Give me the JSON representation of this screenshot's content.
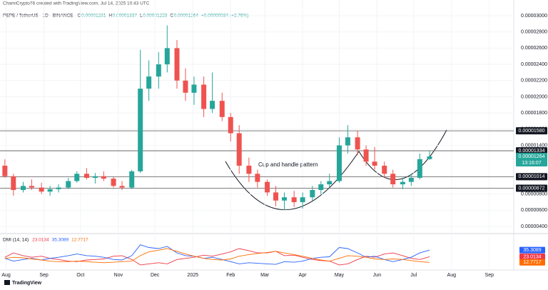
{
  "header": {
    "credit": "ChamiCrypto78 created with TradingView.com, Jul 14, 2025 10:43 UTC",
    "symbol": "PEPE / TetherUS · 1D · BINANCE",
    "ohlc": [
      {
        "label": "O",
        "value": 1.231e-05
      },
      {
        "label": "H",
        "value": 1.337e-05
      },
      {
        "label": "L",
        "value": 1.223e-05
      },
      {
        "label": "C",
        "value": 1.264e-05
      }
    ],
    "change": "+0.00000034 (+2.76%)"
  },
  "annotation": "Cup and handle pattern",
  "footer": "TradingView",
  "chart_data": [
    {
      "type": "candlestick",
      "up_color": "#26a69a",
      "down_color": "#ef5350",
      "x": [
        -1,
        6,
        14,
        21,
        29,
        36,
        43,
        51,
        58,
        66,
        73,
        80,
        88,
        95,
        103,
        110,
        117,
        125,
        132,
        140,
        147,
        154,
        162,
        169,
        177,
        184,
        191,
        199,
        206,
        214,
        221,
        228,
        236,
        243,
        251,
        258,
        265,
        273,
        280,
        288,
        295,
        302,
        310,
        317,
        325,
        332,
        339,
        347
      ],
      "open": [
        1.15e-05,
        1.02e-05,
        8.5e-06,
        9e-06,
        8.8e-06,
        8.3e-06,
        8.6e-06,
        8.8e-06,
        9.6e-06,
        1.05e-05,
        1e-05,
        1.02e-05,
        9.9e-06,
        9e-06,
        8.8e-06,
        1.08e-05,
        2.1e-05,
        2.25e-05,
        2.4e-05,
        2.6e-05,
        2.2e-05,
        2.05e-05,
        2.15e-05,
        1.85e-05,
        1.95e-05,
        1.75e-05,
        1.55e-05,
        1.15e-05,
        1.05e-05,
        9.5e-06,
        8.2e-06,
        7.2e-06,
        7.6e-06,
        7e-06,
        7.6e-06,
        8.5e-06,
        9.2e-06,
        9.6e-06,
        1.4e-05,
        1.5e-05,
        1.35e-05,
        1.2e-05,
        1.15e-05,
        1.05e-05,
        9.2e-06,
        9.5e-06,
        1e-05,
        1.231e-05
      ],
      "high": [
        1.23e-05,
        1.05e-05,
        9.5e-06,
        9.8e-06,
        9.4e-06,
        9e-06,
        9.2e-06,
        1e-05,
        1.08e-05,
        1.12e-05,
        1.06e-05,
        1.08e-05,
        1.01e-05,
        9.6e-06,
        1.1e-05,
        2.58e-05,
        2.45e-05,
        2.55e-05,
        2.88e-05,
        2.7e-05,
        2.35e-05,
        2.25e-05,
        2.25e-05,
        2.3e-05,
        2.05e-05,
        1.8e-05,
        1.65e-05,
        1.25e-05,
        1.1e-05,
        9.8e-06,
        9e-06,
        8.2e-06,
        8.4e-06,
        8.2e-06,
        9e-06,
        9.6e-06,
        1.05e-05,
        1.5e-05,
        1.65e-05,
        1.58e-05,
        1.4e-05,
        1.38e-05,
        1.2e-05,
        1.1e-05,
        1e-05,
        1.05e-05,
        1.3e-05,
        1.337e-05
      ],
      "low": [
        1e-05,
        7.8e-06,
        8.2e-06,
        8.5e-06,
        8e-06,
        7.8e-06,
        8.2e-06,
        8.6e-06,
        9.4e-06,
        9.8e-06,
        9.3e-06,
        9.6e-06,
        8.8e-06,
        8.5e-06,
        8.6e-06,
        1.06e-05,
        1.95e-05,
        2.1e-05,
        2.3e-05,
        2.1e-05,
        1.95e-05,
        1.9e-05,
        1.75e-05,
        1.8e-05,
        1.7e-05,
        1.45e-05,
        1.05e-05,
        9.5e-06,
        8.8e-06,
        7.8e-06,
        6.5e-06,
        6e-06,
        6.4e-06,
        6.2e-06,
        7.2e-06,
        8e-06,
        8.8e-06,
        9.4e-06,
        1.3e-05,
        1.28e-05,
        1.15e-05,
        1.1e-05,
        1e-05,
        8.8e-06,
        8.6e-06,
        9e-06,
        9.8e-06,
        1.223e-05
      ],
      "close": [
        1.02e-05,
        8.5e-06,
        9e-06,
        8.8e-06,
        8.3e-06,
        8.6e-06,
        8.8e-06,
        9.6e-06,
        1.05e-05,
        1e-05,
        1.02e-05,
        9.9e-06,
        9e-06,
        8.8e-06,
        1.08e-05,
        2.1e-05,
        2.25e-05,
        2.4e-05,
        2.6e-05,
        2.2e-05,
        2.05e-05,
        2.15e-05,
        1.85e-05,
        1.95e-05,
        1.75e-05,
        1.55e-05,
        1.15e-05,
        1.05e-05,
        9.5e-06,
        8.2e-06,
        7.2e-06,
        7.6e-06,
        7e-06,
        7.6e-06,
        8.5e-06,
        9.2e-06,
        9.6e-06,
        1.4e-05,
        1.5e-05,
        1.35e-05,
        1.2e-05,
        1.15e-05,
        1.05e-05,
        9.2e-06,
        9.5e-06,
        1e-05,
        1.231e-05,
        1.264e-05
      ],
      "xlim": [
        -5,
        416
      ],
      "xticks": [
        {
          "value": 0,
          "label": "Aug"
        },
        {
          "value": 31,
          "label": "Sep"
        },
        {
          "value": 61,
          "label": "Oct"
        },
        {
          "value": 92,
          "label": "Nov"
        },
        {
          "value": 122,
          "label": "Dec"
        },
        {
          "value": 153,
          "label": "2025"
        },
        {
          "value": 184,
          "label": "Feb"
        },
        {
          "value": 212,
          "label": "Mar"
        },
        {
          "value": 243,
          "label": "Apr"
        },
        {
          "value": 273,
          "label": "May"
        },
        {
          "value": 304,
          "label": "Jun"
        },
        {
          "value": 334,
          "label": "Jul"
        },
        {
          "value": 365,
          "label": "Aug"
        },
        {
          "value": 396,
          "label": "Sep"
        }
      ],
      "ylim": [
        3.3e-06,
        3.194e-05
      ],
      "yticks": [
        {
          "value": 4e-06,
          "label": "0.00000400"
        },
        {
          "value": 6e-06,
          "label": "0.00000600"
        },
        {
          "value": 8e-06,
          "label": "0.00000800"
        },
        {
          "value": 1.4e-05,
          "label": "0.00001400"
        },
        {
          "value": 1.6e-05,
          "label": "0.00001600"
        },
        {
          "value": 1.8e-05,
          "label": "0.00001800"
        },
        {
          "value": 2e-05,
          "label": "0.00002000"
        },
        {
          "value": 2.2e-05,
          "label": "0.00002200"
        },
        {
          "value": 2.4e-05,
          "label": "0.00002400"
        },
        {
          "value": 2.6e-05,
          "label": "0.00002600"
        },
        {
          "value": 2.8e-05,
          "label": "0.00002800"
        },
        {
          "value": 3e-05,
          "label": "0.00003000"
        }
      ],
      "levels": [
        {
          "value": 1.58e-05,
          "label": "0.00001580"
        },
        {
          "value": 1.334e-05,
          "label": "0.00001334"
        },
        {
          "value": 1.014e-05,
          "label": "0.00001014"
        },
        {
          "value": 8.72e-06,
          "label": "0.00000872"
        }
      ],
      "current": {
        "value": 1.264e-05,
        "label": "0.00001264",
        "countdown": "13:16:07",
        "color": "#26a69a"
      }
    },
    {
      "type": "line",
      "title": "DMI (14, 14)",
      "ylim": [
        0,
        59
      ],
      "series": [
        {
          "color": "#f23645",
          "values": [
            22,
            30,
            25,
            22,
            24,
            20,
            18,
            15,
            14,
            17,
            18,
            19,
            24,
            25,
            18,
            8,
            10,
            12,
            10,
            18,
            20,
            22,
            26,
            24,
            28,
            32,
            38,
            34,
            30,
            30,
            33,
            25,
            26,
            22,
            18,
            16,
            15,
            8,
            10,
            18,
            24,
            22,
            28,
            30,
            25,
            20,
            18,
            23.0134
          ]
        },
        {
          "color": "#2962ff",
          "values": [
            20,
            15,
            18,
            20,
            17,
            20,
            22,
            25,
            28,
            25,
            24,
            22,
            18,
            17,
            25,
            45,
            40,
            38,
            42,
            30,
            25,
            24,
            20,
            22,
            18,
            14,
            10,
            12,
            11,
            10,
            9,
            14,
            13,
            15,
            20,
            22,
            23,
            40,
            38,
            30,
            22,
            24,
            18,
            14,
            18,
            22,
            30,
            35.3089
          ]
        },
        {
          "color": "#ff6d00",
          "values": [
            20,
            22,
            21,
            19,
            17,
            15,
            14,
            14,
            15,
            14,
            13,
            12,
            13,
            14,
            15,
            25,
            32,
            35,
            38,
            33,
            28,
            24,
            20,
            18,
            17,
            19,
            24,
            27,
            29,
            31,
            33,
            30,
            27,
            24,
            20,
            17,
            15,
            20,
            25,
            24,
            22,
            19,
            18,
            19,
            18,
            16,
            14,
            12.7717
          ]
        }
      ]
    }
  ]
}
